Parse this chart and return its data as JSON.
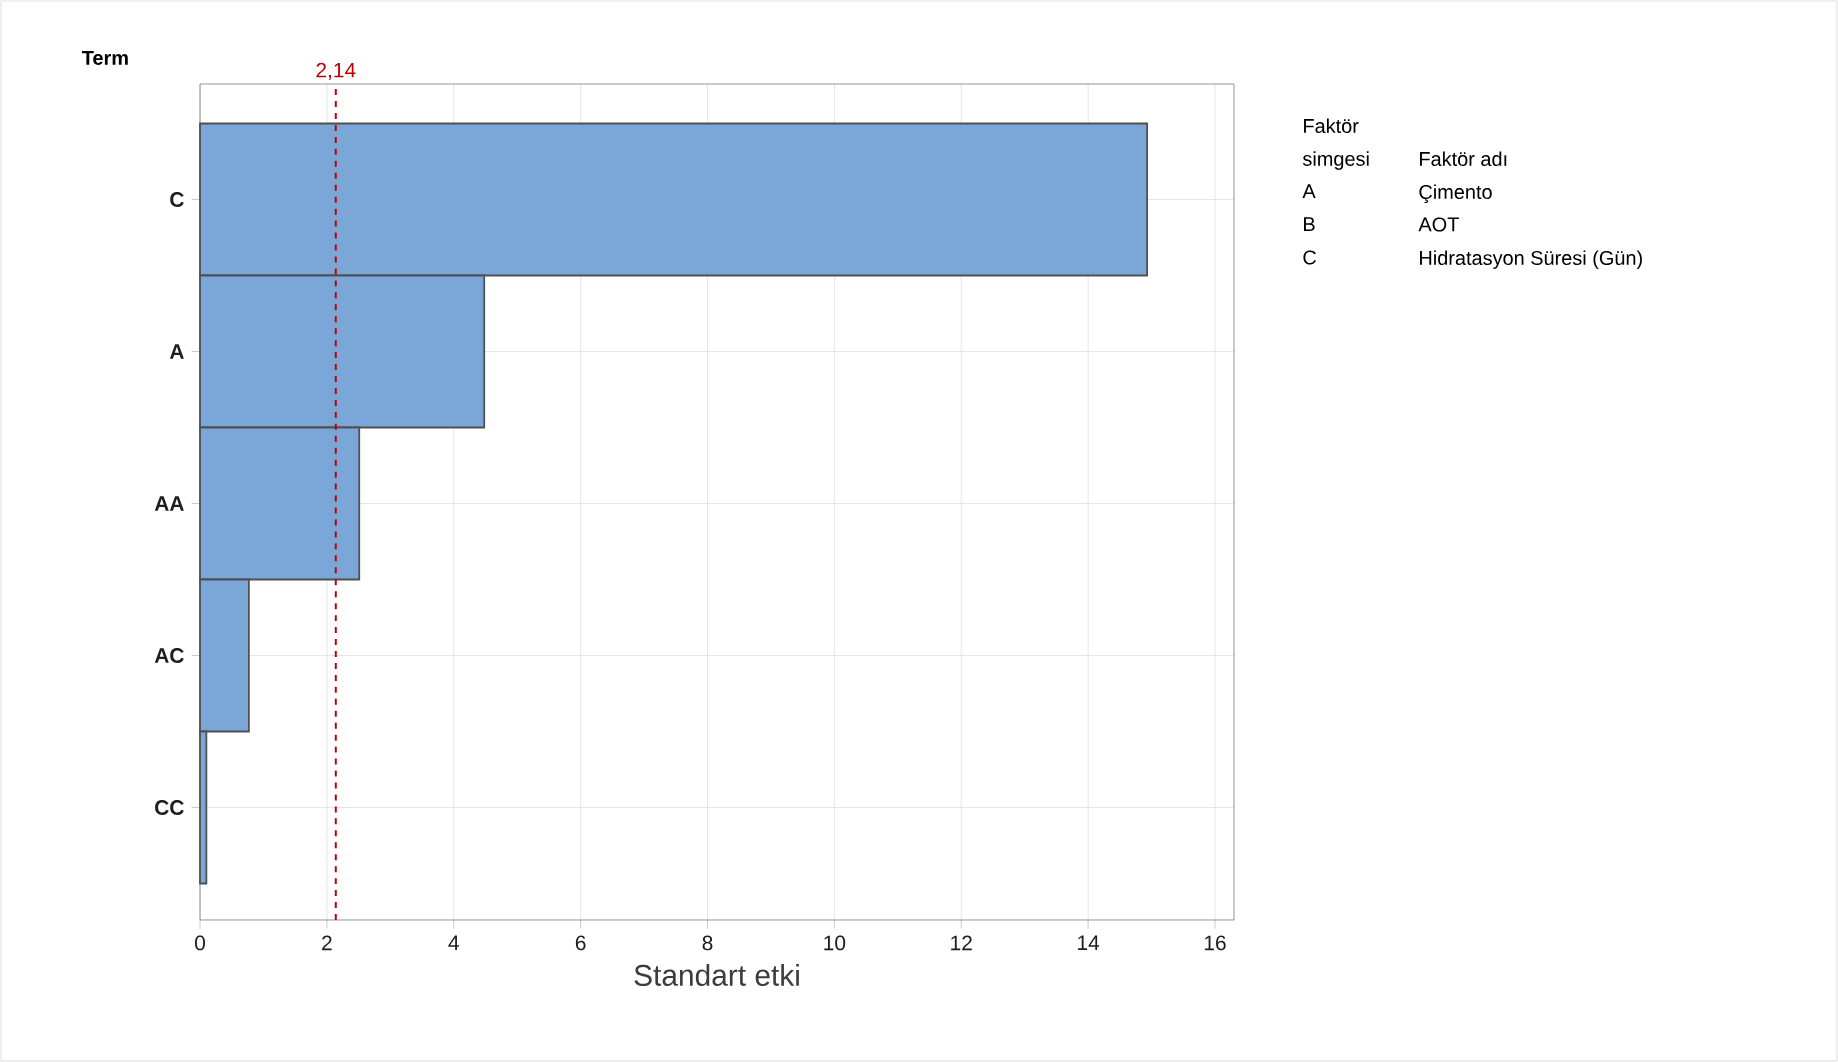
{
  "chart_data": {
    "type": "bar",
    "orientation": "horizontal",
    "ylabel": "Term",
    "xlabel": "Standart etki",
    "categories": [
      "C",
      "A",
      "AA",
      "AC",
      "CC"
    ],
    "values": [
      14.93,
      4.48,
      2.51,
      0.77,
      0.1
    ],
    "color": "#7ba7d8",
    "xlim": [
      0,
      16.3
    ],
    "xticks": [
      0,
      2,
      4,
      6,
      8,
      10,
      12,
      14,
      16
    ],
    "grid": true,
    "ref_lines": [
      {
        "axis": "x",
        "value": 2.14,
        "label": "2,14",
        "color": "#c00000",
        "line_style": "dashed"
      }
    ],
    "annotations": [
      "Faktör simgesi",
      "Faktör adı",
      "A",
      "Çimento",
      "B",
      "AOT",
      "C",
      "Hidratasyon Süresi (Gün)"
    ]
  }
}
